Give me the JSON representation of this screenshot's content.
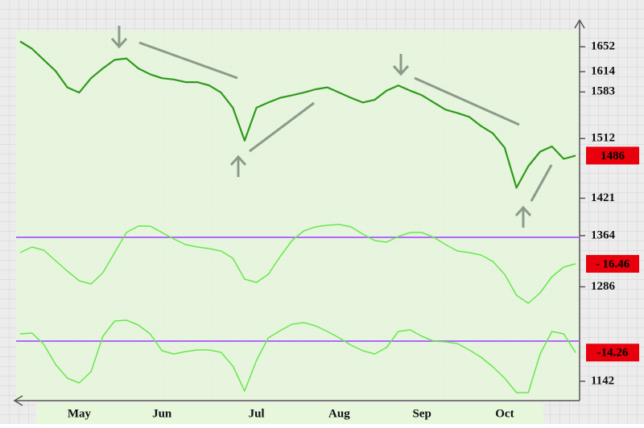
{
  "chart_data": [
    {
      "type": "line",
      "name": "price",
      "categories": [
        null,
        null,
        null,
        null,
        null,
        "May",
        null,
        null,
        null,
        null,
        null,
        null,
        "Jun",
        null,
        null,
        null,
        null,
        null,
        null,
        null,
        "Jul",
        null,
        null,
        null,
        null,
        null,
        null,
        "Aug",
        null,
        null,
        null,
        null,
        null,
        null,
        "Sep",
        null,
        null,
        null,
        null,
        null,
        null,
        "Oct",
        null,
        null,
        null,
        null,
        null,
        null
      ],
      "values": [
        1660,
        1649,
        1632,
        1615,
        1590,
        1582,
        1604,
        1619,
        1632,
        1634,
        1619,
        1610,
        1604,
        1602,
        1598,
        1598,
        1593,
        1582,
        1559,
        1509,
        1559,
        1567,
        1574,
        1578,
        1582,
        1587,
        1590,
        1582,
        1574,
        1567,
        1571,
        1585,
        1593,
        1585,
        1578,
        1567,
        1556,
        1551,
        1545,
        1531,
        1520,
        1498,
        1437,
        1470,
        1492,
        1500,
        1481,
        1486
      ],
      "color": "#2e9a1a",
      "ylim": [
        1110,
        1668
      ],
      "yticks": [
        1652,
        1614,
        1583,
        1512,
        1421,
        1364,
        1286,
        1142
      ]
    },
    {
      "type": "line",
      "name": "oscillator",
      "values": [
        -9.5,
        -6,
        -8,
        -14.5,
        -21,
        -27,
        -29,
        -22,
        -9.5,
        3,
        7,
        7,
        3,
        -1,
        -4.5,
        -6,
        -7,
        -8.5,
        -13,
        -26,
        -28,
        -23,
        -12,
        -2,
        4,
        6.5,
        7.5,
        8,
        6.5,
        2,
        -2,
        -3,
        0.5,
        3,
        3,
        0,
        -4.5,
        -8.5,
        -9.5,
        -11,
        -15,
        -23,
        -36,
        -41,
        -34.5,
        -24.5,
        -18.5,
        -16.46
      ],
      "value_labels": [
        null,
        null,
        null,
        null,
        null,
        null,
        null,
        null,
        null,
        null,
        null,
        null,
        null,
        null,
        null,
        null,
        null,
        null,
        null,
        null,
        null,
        null,
        null,
        null,
        null,
        null,
        null,
        null,
        null,
        null,
        null,
        null,
        null,
        null,
        null,
        null,
        null,
        null,
        null,
        null,
        null,
        null,
        null,
        null,
        null,
        null,
        null,
        "- 16.46"
      ],
      "color": "#66e84a",
      "ylim": [
        -45,
        12
      ],
      "reference_line": 0,
      "reference_color": "#b366ff"
    },
    {
      "type": "line",
      "name": "oscillator",
      "values": [
        9,
        10,
        -4,
        -29,
        -46,
        -52,
        -38,
        6,
        25,
        26,
        20,
        9,
        -12,
        -16,
        -13,
        -11,
        -11,
        -14,
        -31,
        -62,
        -24,
        4,
        13,
        21,
        23,
        19,
        12,
        4,
        -5,
        -12,
        -16,
        -8,
        12,
        14,
        6,
        0,
        -1,
        -3,
        -11,
        -20,
        -32,
        -46,
        -64,
        -64,
        -16,
        12,
        9,
        -14.26
      ],
      "color": "#66e84a",
      "ylim": [
        -75,
        30
      ],
      "reference_line": 0,
      "reference_color": "#b366ff"
    }
  ]
}
